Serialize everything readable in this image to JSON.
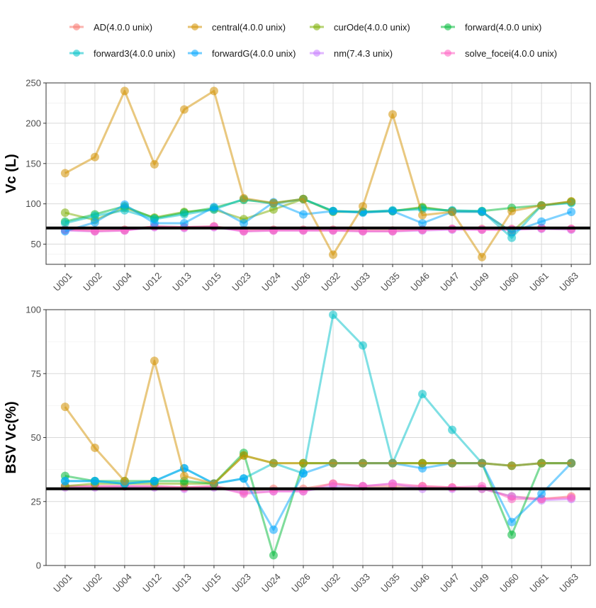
{
  "legend": {
    "placement": "top",
    "items": [
      {
        "label": "AD(4.0.0 unix)",
        "color": "#F8766D"
      },
      {
        "label": "central(4.0.0 unix)",
        "color": "#D39200"
      },
      {
        "label": "curOde(4.0.0 unix)",
        "color": "#7CAE00"
      },
      {
        "label": "forward(4.0.0 unix)",
        "color": "#00BA38"
      },
      {
        "label": "forward3(4.0.0 unix)",
        "color": "#00C1C9"
      },
      {
        "label": "forwardG(4.0.0 unix)",
        "color": "#00A5FF"
      },
      {
        "label": "nm(7.4.3 unix)",
        "color": "#C77CFF"
      },
      {
        "label": "solve_focei(4.0.0 unix)",
        "color": "#FF61C3"
      }
    ]
  },
  "chart_data": [
    {
      "type": "line",
      "title": "",
      "xlabel": "",
      "ylabel": "Vc (L)",
      "ylim": [
        25,
        250
      ],
      "yticks": [
        50,
        100,
        150,
        200,
        250
      ],
      "grid": true,
      "reference_line": 70,
      "categories": [
        "U001",
        "U002",
        "U004",
        "U012",
        "U013",
        "U015",
        "U023",
        "U024",
        "U026",
        "U032",
        "U033",
        "U035",
        "U046",
        "U047",
        "U049",
        "U060",
        "U061",
        "U063"
      ],
      "series": [
        {
          "name": "AD(4.0.0 unix)",
          "values": [
            68,
            67,
            68,
            72,
            71,
            72,
            67,
            68,
            68,
            68,
            67,
            67,
            68,
            69,
            69,
            69,
            70,
            69
          ]
        },
        {
          "name": "nm(7.4.3 unix)",
          "values": [
            67,
            66,
            67,
            71,
            70,
            71,
            66,
            67,
            67,
            67,
            66,
            66,
            67,
            68,
            68,
            68,
            69,
            68
          ]
        },
        {
          "name": "solve_focei(4.0.0 unix)",
          "values": [
            68,
            66,
            67,
            72,
            71,
            72,
            66,
            67,
            67,
            67,
            66,
            66,
            68,
            69,
            68,
            68,
            70,
            69
          ]
        },
        {
          "name": "curOde(4.0.0 unix)",
          "values": [
            89,
            80,
            95,
            83,
            90,
            93,
            81,
            93,
            106,
            90,
            90,
            91,
            96,
            91,
            90,
            65,
            98,
            103
          ]
        },
        {
          "name": "forward(4.0.0 unix)",
          "values": [
            78,
            87,
            97,
            82,
            89,
            95,
            105,
            101,
            106,
            91,
            90,
            91,
            95,
            91,
            91,
            95,
            98,
            102
          ]
        },
        {
          "name": "forward3(4.0.0 unix)",
          "values": [
            76,
            85,
            92,
            81,
            87,
            93,
            106,
            100,
            106,
            91,
            90,
            92,
            93,
            92,
            91,
            58,
            98,
            101
          ]
        },
        {
          "name": "forwardG(4.0.0 unix)",
          "values": [
            66,
            77,
            99,
            76,
            76,
            96,
            76,
            102,
            87,
            91,
            89,
            91,
            76,
            90,
            90,
            65,
            78,
            90
          ]
        },
        {
          "name": "central(4.0.0 unix)",
          "values": [
            138,
            158,
            240,
            149,
            217,
            240,
            107,
            101,
            106,
            37,
            97,
            211,
            86,
            90,
            34,
            91,
            98,
            103
          ]
        }
      ]
    },
    {
      "type": "line",
      "title": "",
      "xlabel": "",
      "ylabel": "BSV Vc(%)",
      "ylim": [
        0,
        100
      ],
      "yticks": [
        0,
        25,
        50,
        75,
        100
      ],
      "grid": true,
      "reference_line": 30,
      "categories": [
        "U001",
        "U002",
        "U004",
        "U012",
        "U013",
        "U015",
        "U023",
        "U024",
        "U026",
        "U032",
        "U033",
        "U035",
        "U046",
        "U047",
        "U049",
        "U060",
        "U061",
        "U063"
      ],
      "series": [
        {
          "name": "AD(4.0.0 unix)",
          "values": [
            31,
            31,
            31,
            31,
            30.5,
            31,
            29,
            30,
            30,
            32,
            31,
            31,
            31,
            30.5,
            30,
            27,
            26,
            27
          ]
        },
        {
          "name": "nm(7.4.3 unix)",
          "values": [
            30.5,
            30.5,
            31,
            30.5,
            30,
            30.5,
            28.5,
            29,
            29,
            31,
            31,
            32,
            30,
            30,
            30,
            27,
            25.5,
            26
          ]
        },
        {
          "name": "solve_focei(4.0.0 unix)",
          "values": [
            31,
            31,
            31,
            31,
            30.5,
            31,
            28,
            29,
            29,
            32,
            31,
            32,
            31,
            30.5,
            31,
            26,
            26,
            26.5
          ]
        },
        {
          "name": "curOde(4.0.0 unix)",
          "values": [
            31,
            32,
            32,
            32,
            32,
            32,
            43,
            40,
            40,
            40,
            40,
            40,
            40,
            40,
            40,
            39,
            40,
            40
          ]
        },
        {
          "name": "forward(4.0.0 unix)",
          "values": [
            35,
            33,
            33,
            33,
            33,
            32,
            44,
            4,
            40,
            40,
            40,
            40,
            40,
            40,
            40,
            12,
            40,
            40
          ]
        },
        {
          "name": "forward3(4.0.0 unix)",
          "values": [
            33,
            33,
            32,
            33,
            38,
            32,
            34,
            40,
            36,
            98,
            86,
            40,
            67,
            53,
            40,
            39,
            40,
            40
          ]
        },
        {
          "name": "forwardG(4.0.0 unix)",
          "values": [
            33,
            33,
            32,
            33,
            38,
            32,
            34,
            14,
            36,
            40,
            40,
            40,
            38,
            40,
            40,
            17,
            28,
            40
          ]
        },
        {
          "name": "central(4.0.0 unix)",
          "values": [
            62,
            46,
            33,
            80,
            35,
            32,
            43,
            40,
            40,
            40,
            40,
            40,
            40,
            40,
            40,
            39,
            40,
            40
          ]
        }
      ]
    }
  ]
}
